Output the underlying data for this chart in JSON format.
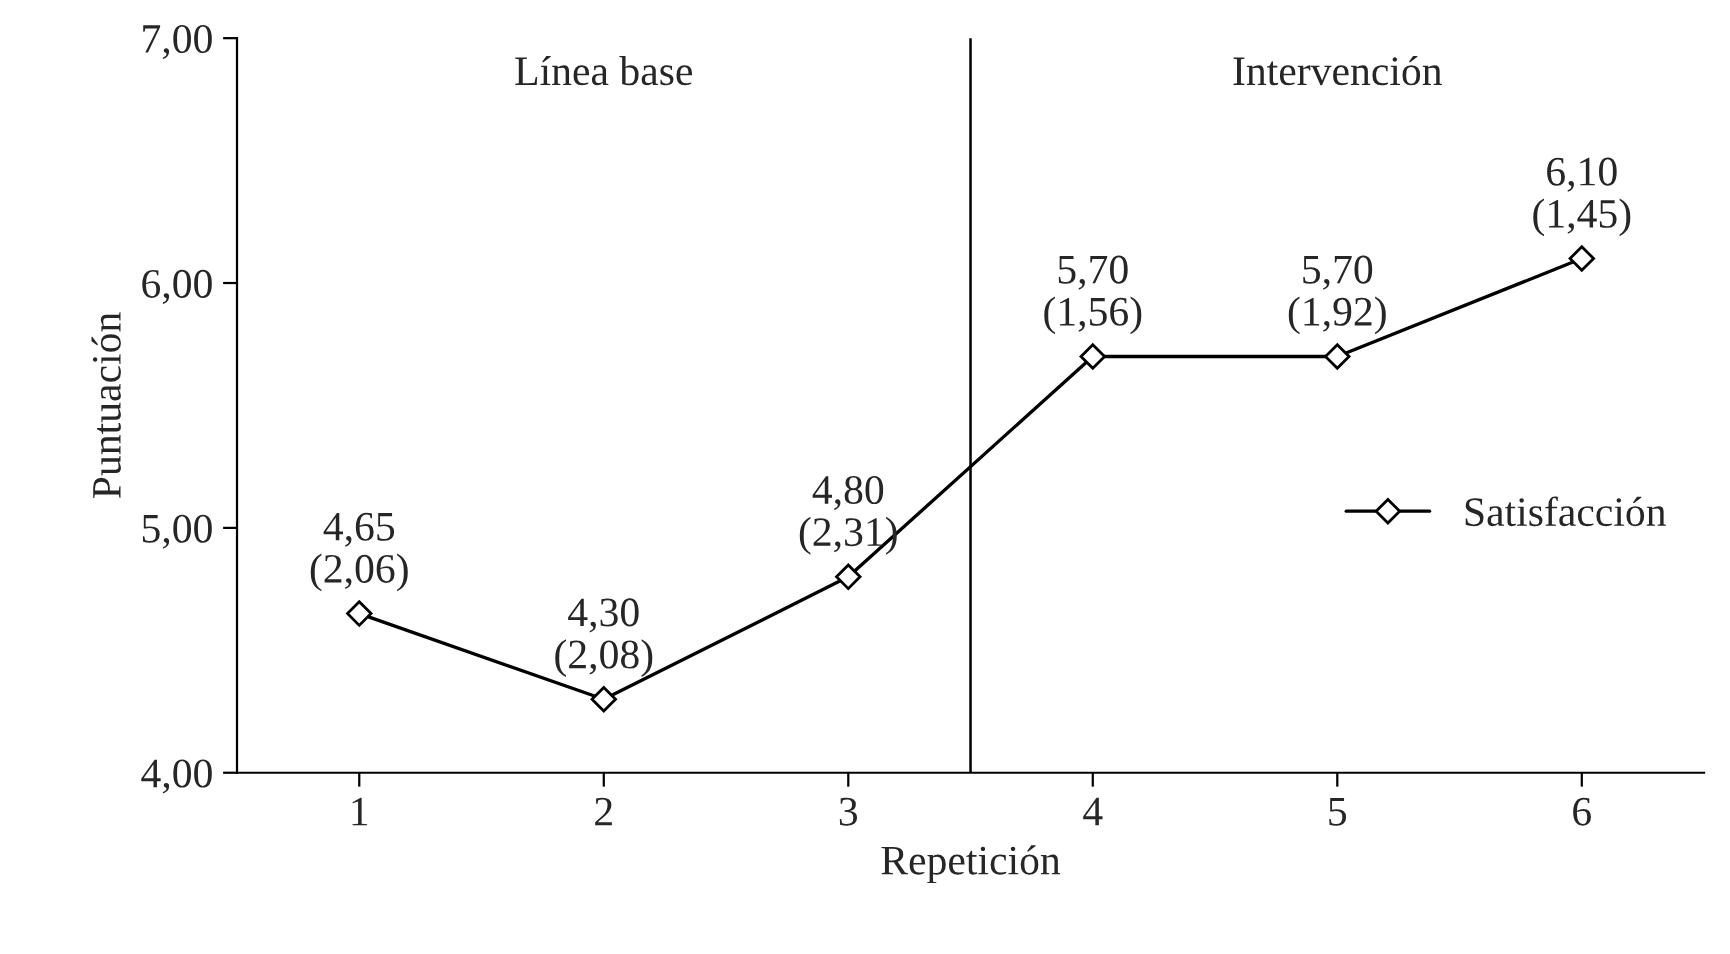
{
  "chart_data": {
    "type": "line",
    "xlabel": "Repetición",
    "ylabel": "Puntuación",
    "x": [
      1,
      2,
      3,
      4,
      5,
      6
    ],
    "xlim": [
      0.5,
      6.5
    ],
    "xticks": [
      1,
      2,
      3,
      4,
      5,
      6
    ],
    "ylim": [
      4,
      7
    ],
    "yticks": [
      {
        "value": 4,
        "label": "4,00"
      },
      {
        "value": 5,
        "label": "5,00"
      },
      {
        "value": 6,
        "label": "6,00"
      },
      {
        "value": 7,
        "label": "7,00"
      }
    ],
    "series": [
      {
        "name": "Satisfacción",
        "color": "#000000",
        "values": [
          4.65,
          4.3,
          4.8,
          5.7,
          5.7,
          6.1
        ],
        "value_labels": [
          "4,65\n(2,06)",
          "4,30\n(2,08)",
          "4,80\n(2,31)",
          "5,70\n(1,56)",
          "5,70\n(1,92)",
          "6,10\n(1,45)"
        ]
      }
    ],
    "ref_lines": [
      {
        "axis": "x",
        "value": 3.5,
        "color": "#000000"
      }
    ],
    "annotations": [
      "Línea base",
      "Intervención"
    ],
    "marker": "diamond",
    "line_style": "solid",
    "legend": "right",
    "grid": false
  }
}
